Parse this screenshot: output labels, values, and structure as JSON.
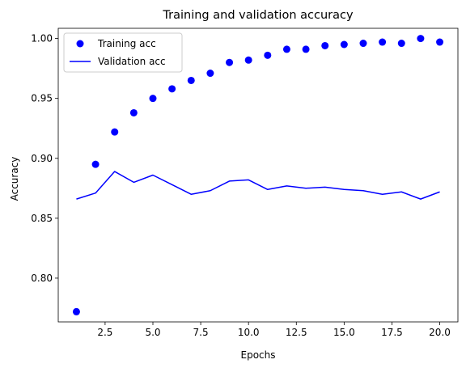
{
  "chart_data": {
    "type": "line",
    "title": "Training and validation accuracy",
    "xlabel": "Epochs",
    "ylabel": "Accuracy",
    "x": [
      1,
      2,
      3,
      4,
      5,
      6,
      7,
      8,
      9,
      10,
      11,
      12,
      13,
      14,
      15,
      16,
      17,
      18,
      19,
      20
    ],
    "xlim": [
      0.05,
      20.95
    ],
    "ylim": [
      0.7635,
      1.0085
    ],
    "xticks": [
      2.5,
      5.0,
      7.5,
      10.0,
      12.5,
      15.0,
      17.5,
      20.0
    ],
    "xtick_labels": [
      "2.5",
      "5.0",
      "7.5",
      "10.0",
      "12.5",
      "15.0",
      "17.5",
      "20.0"
    ],
    "yticks": [
      0.8,
      0.85,
      0.9,
      0.95,
      1.0
    ],
    "ytick_labels": [
      "0.80",
      "0.85",
      "0.90",
      "0.95",
      "1.00"
    ],
    "grid": false,
    "legend_position": "upper-left",
    "series": [
      {
        "name": "Training acc",
        "style": "markers",
        "color": "#0000ff",
        "values": [
          0.772,
          0.895,
          0.922,
          0.938,
          0.95,
          0.958,
          0.965,
          0.971,
          0.98,
          0.982,
          0.986,
          0.991,
          0.991,
          0.994,
          0.995,
          0.996,
          0.997,
          0.996,
          1.0,
          0.997
        ]
      },
      {
        "name": "Validation acc",
        "style": "line",
        "color": "#0000ff",
        "values": [
          0.866,
          0.871,
          0.889,
          0.88,
          0.886,
          0.878,
          0.87,
          0.873,
          0.881,
          0.882,
          0.874,
          0.877,
          0.875,
          0.876,
          0.874,
          0.873,
          0.87,
          0.872,
          0.866,
          0.872
        ]
      }
    ]
  }
}
